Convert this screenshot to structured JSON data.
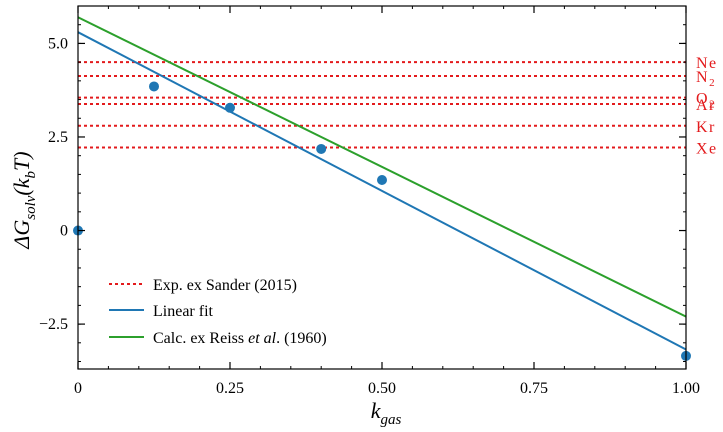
{
  "chart_data": {
    "type": "scatter",
    "xlabel": {
      "base": "k",
      "sub": "gas"
    },
    "ylabel": {
      "prefix": "ΔG",
      "sub": "solv",
      "mid": "(k",
      "sub2": "b",
      "suffix": "T)"
    },
    "xlim": [
      0,
      1.0
    ],
    "ylim": [
      -3.7,
      6.0
    ],
    "x_ticks": [
      {
        "value": 0,
        "label": "0"
      },
      {
        "value": 0.25,
        "label": "0.25"
      },
      {
        "value": 0.5,
        "label": "0.50"
      },
      {
        "value": 0.75,
        "label": "0.75"
      },
      {
        "value": 1.0,
        "label": "1.00"
      }
    ],
    "y_ticks": [
      {
        "value": -2.5,
        "label": "−2.5"
      },
      {
        "value": 0,
        "label": "0"
      },
      {
        "value": 2.5,
        "label": "2.5"
      },
      {
        "value": 5.0,
        "label": "5.0"
      }
    ],
    "x_minor_step": 0.05,
    "y_minor_step": 0.5,
    "grid": false,
    "points": {
      "color": "#1f77b4",
      "x": [
        0,
        0.125,
        0.25,
        0.4,
        0.5,
        1.0
      ],
      "y": [
        0.0,
        3.85,
        3.28,
        2.18,
        1.35,
        -3.35
      ]
    },
    "series": [
      {
        "kind": "line",
        "label": "Linear fit",
        "color": "#1f77b4",
        "x": [
          0,
          1.0
        ],
        "y": [
          5.3,
          -3.18
        ]
      },
      {
        "kind": "line",
        "label_parts": [
          "Calc. ex Reiss ",
          "et al",
          ". (1960)"
        ],
        "color": "#2ca02c",
        "x": [
          0,
          1.0
        ],
        "y": [
          5.7,
          -2.3
        ]
      }
    ],
    "experimental": {
      "label": "Exp. ex Sander (2015)",
      "color": "#e31a1c",
      "gases": [
        {
          "name": "Ne",
          "sub": "",
          "value": 4.5
        },
        {
          "name": "N",
          "sub": "2",
          "value": 4.13
        },
        {
          "name": "O",
          "sub": "2",
          "value": 3.55
        },
        {
          "name": "Ar",
          "sub": "",
          "value": 3.38
        },
        {
          "name": "Kr",
          "sub": "",
          "value": 2.8
        },
        {
          "name": "Xe",
          "sub": "",
          "value": 2.22
        }
      ]
    },
    "legend_position": "lower-left"
  }
}
